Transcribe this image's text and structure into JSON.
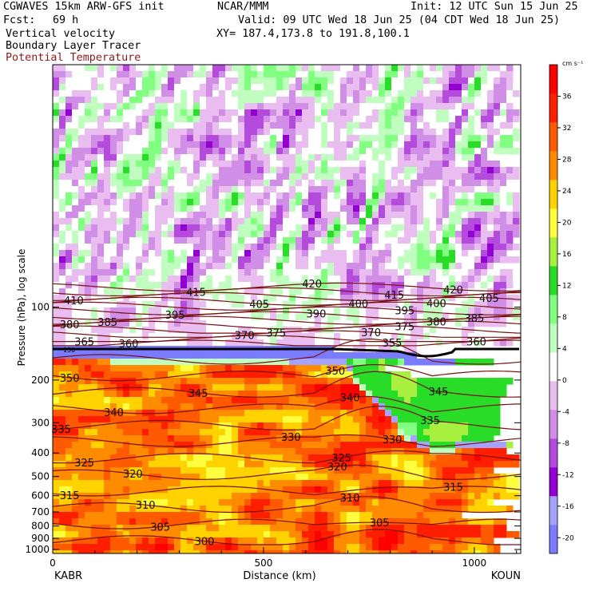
{
  "header": {
    "model": "CGWAVES 15km ARW-GFS init",
    "org": "NCAR/MMM",
    "init": "Init: 12 UTC Sun 15 Jun 25",
    "fcst_label": "Fcst:",
    "fcst_value": "69 h",
    "valid": "Valid: 09 UTC Wed 18 Jun 25 (04 CDT Wed 18 Jun 25)",
    "field1": "Vertical velocity",
    "xy": "XY= 187.4,173.8 to 191.8,100.1",
    "field2": "Boundary Layer Tracer",
    "field3": "Potential Temperature",
    "field3_color": "#8b1a1a"
  },
  "chart_data": {
    "type": "heatmap",
    "xlabel": "Distance (km)",
    "ylabel": "Pressure (hPa), log scale",
    "x_ticks": [
      "0",
      "500",
      "1000"
    ],
    "x_tick_values": [
      0,
      500,
      1000
    ],
    "xlim": [
      0,
      1110
    ],
    "y_ticks": [
      "100",
      "200",
      "300",
      "400",
      "500",
      "600",
      "700",
      "800",
      "900",
      "1000"
    ],
    "y_tick_values": [
      100,
      200,
      300,
      400,
      500,
      600,
      700,
      800,
      900,
      1000
    ],
    "y_scale": "log",
    "endpoint_left": "KABR",
    "endpoint_right": "KOUN",
    "colorbar": {
      "unit": "cm s⁻¹",
      "labels": [
        "36",
        "32",
        "28",
        "24",
        "20",
        "16",
        "12",
        "8",
        "4",
        "0",
        "-4",
        "-8",
        "-12",
        "-16",
        "-20"
      ],
      "label_values": [
        36,
        32,
        28,
        24,
        20,
        16,
        12,
        8,
        4,
        0,
        -4,
        -8,
        -12,
        -16,
        -20
      ],
      "range": [
        -22,
        40
      ],
      "colors": [
        "#7b7bff",
        "#a4a4ff",
        "#9200d2",
        "#b54bdc",
        "#d08ee6",
        "#e9bdf0",
        "#ffffff",
        "#bffebf",
        "#80ff80",
        "#28dc28",
        "#a8f040",
        "#ffff40",
        "#ffd200",
        "#ff8c00",
        "#ff5a00",
        "#ff1e00",
        "#ff0000"
      ]
    },
    "tropopause_label": "150",
    "theta_contours": [
      {
        "value": 300,
        "label": "300",
        "x": 360
      },
      {
        "value": 305,
        "label": "305",
        "x": 255
      },
      {
        "value": 305,
        "label": "305",
        "x": 775
      },
      {
        "value": 310,
        "label": "310",
        "x": 220
      },
      {
        "value": 310,
        "label": "310",
        "x": 705
      },
      {
        "value": 315,
        "label": "315",
        "x": 40
      },
      {
        "value": 315,
        "label": "315",
        "x": 950
      },
      {
        "value": 320,
        "label": "320",
        "x": 190
      },
      {
        "value": 320,
        "label": "320",
        "x": 675
      },
      {
        "value": 325,
        "label": "325",
        "x": 75
      },
      {
        "value": 325,
        "label": "325",
        "x": 685
      },
      {
        "value": 330,
        "label": "330",
        "x": 565
      },
      {
        "value": 330,
        "label": "330",
        "x": 805
      },
      {
        "value": 335,
        "label": "335",
        "x": 20
      },
      {
        "value": 335,
        "label": "335",
        "x": 895
      },
      {
        "value": 340,
        "label": "340",
        "x": 145
      },
      {
        "value": 340,
        "label": "340",
        "x": 705
      },
      {
        "value": 345,
        "label": "345",
        "x": 345
      },
      {
        "value": 345,
        "label": "345",
        "x": 915
      },
      {
        "value": 350,
        "label": "350",
        "x": 40
      },
      {
        "value": 350,
        "label": "350",
        "x": 670
      },
      {
        "value": 355,
        "label": "355",
        "x": 805
      },
      {
        "value": 360,
        "label": "360",
        "x": 180
      },
      {
        "value": 360,
        "label": "360",
        "x": 1005
      },
      {
        "value": 365,
        "label": "365",
        "x": 75
      },
      {
        "value": 370,
        "label": "370",
        "x": 455
      },
      {
        "value": 370,
        "label": "370",
        "x": 755
      },
      {
        "value": 375,
        "label": "375",
        "x": 530
      },
      {
        "value": 375,
        "label": "375",
        "x": 835
      },
      {
        "value": 380,
        "label": "380",
        "x": 40
      },
      {
        "value": 380,
        "label": "380",
        "x": 910
      },
      {
        "value": 385,
        "label": "385",
        "x": 130
      },
      {
        "value": 385,
        "label": "385",
        "x": 1000
      },
      {
        "value": 390,
        "label": "390",
        "x": 625
      },
      {
        "value": 395,
        "label": "395",
        "x": 290
      },
      {
        "value": 395,
        "label": "395",
        "x": 835
      },
      {
        "value": 400,
        "label": "400",
        "x": 725
      },
      {
        "value": 400,
        "label": "400",
        "x": 910
      },
      {
        "value": 405,
        "label": "405",
        "x": 490
      },
      {
        "value": 405,
        "label": "405",
        "x": 1035
      },
      {
        "value": 410,
        "label": "410",
        "x": 50
      },
      {
        "value": 415,
        "label": "415",
        "x": 340
      },
      {
        "value": 415,
        "label": "415",
        "x": 810
      },
      {
        "value": 420,
        "label": "420",
        "x": 615
      },
      {
        "value": 420,
        "label": "420",
        "x": 950
      }
    ]
  }
}
